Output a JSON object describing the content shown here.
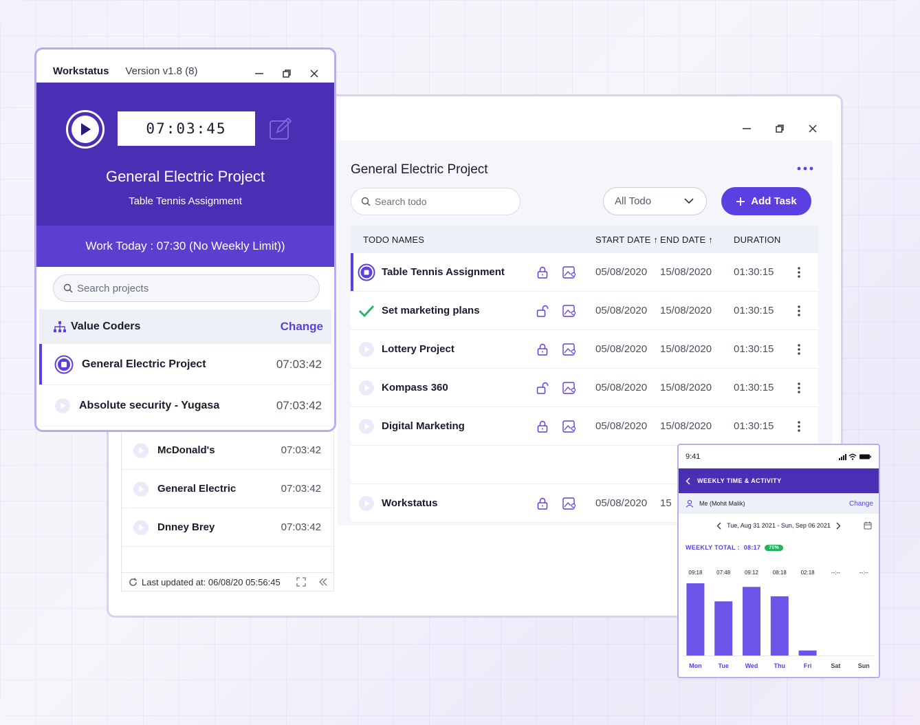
{
  "workstatus": {
    "app_name": "Workstatus",
    "version": "Version v1.8 (8)",
    "timer": "07:03:45",
    "current_project": "General Electric Project",
    "current_task": "Table Tennis Assignment",
    "work_today": "Work Today : 07:30 (No Weekly Limit))",
    "search_placeholder": "Search projects",
    "org_name": "Value Coders",
    "org_change_label": "Change",
    "projects": [
      {
        "name": "General Electric Project",
        "time": "07:03:42",
        "active": true
      },
      {
        "name": "Absolute security - Yugasa",
        "time": "07:03:42",
        "active": false
      },
      {
        "name": "McDonald's",
        "time": "07:03:42",
        "active": false
      },
      {
        "name": "General Electric",
        "time": "07:03:42",
        "active": false
      },
      {
        "name": "Dnney Brey",
        "time": "07:03:42",
        "active": false
      }
    ],
    "last_updated": "Last updated at: 06/08/20  05:56:45"
  },
  "todo": {
    "title": "General Electric Project",
    "search_placeholder": "Search todo",
    "filter_value": "All Todo",
    "add_task_label": "Add Task",
    "columns": {
      "name": "TODO NAMES",
      "start": "START DATE",
      "end": "END DATE",
      "duration": "DURATION"
    },
    "rows": [
      {
        "name": "Table Tennis Assignment",
        "start": "05/08/2020",
        "end": "15/08/2020",
        "duration": "01:30:15",
        "status": "running"
      },
      {
        "name": "Set marketing plans",
        "start": "05/08/2020",
        "end": "15/08/2020",
        "duration": "01:30:15",
        "status": "done"
      },
      {
        "name": "Lottery Project",
        "start": "05/08/2020",
        "end": "15/08/2020",
        "duration": "01:30:15",
        "status": "idle"
      },
      {
        "name": "Kompass 360",
        "start": "05/08/2020",
        "end": "15/08/2020",
        "duration": "01:30:15",
        "status": "idle"
      },
      {
        "name": "Digital Marketing",
        "start": "05/08/2020",
        "end": "15/08/2020",
        "duration": "01:30:15",
        "status": "idle"
      },
      {
        "name": "Workstatus",
        "start": "05/08/2020",
        "end": "15",
        "duration": "",
        "status": "idle"
      }
    ]
  },
  "mobile": {
    "time": "9:41",
    "header": "WEEKLY TIME & ACTIVITY",
    "user": "Me (Mohit Malik)",
    "user_change": "Change",
    "range": "Tue, Aug 31 2021 - Sun, Sep 06 2021",
    "weekly_total_label": "WEEKLY TOTAL :",
    "weekly_total_value": "08:17",
    "activity_badge": "70%"
  },
  "chart_data": {
    "type": "bar",
    "categories": [
      "Mon",
      "Tue",
      "Wed",
      "Thu",
      "Fri",
      "Sat",
      "Sun"
    ],
    "value_labels": [
      "09:18",
      "07:48",
      "09:12",
      "08:18",
      "02:18",
      "--:--",
      "--:--"
    ],
    "values": [
      1.0,
      0.75,
      0.95,
      0.82,
      0.07,
      0,
      0
    ],
    "bar_color": "#6b55e8"
  },
  "colors": {
    "primary": "#5b3fe0",
    "hero": "#4a2fb4",
    "success": "#22b35e"
  }
}
